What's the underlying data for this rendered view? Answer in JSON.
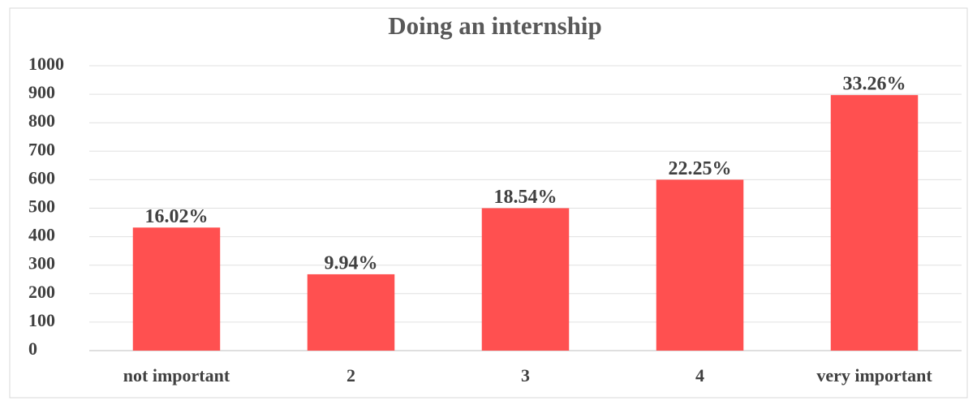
{
  "chart_data": {
    "type": "bar",
    "title": "Doing an internship",
    "categories": [
      "not important",
      "2",
      "3",
      "4",
      "very important"
    ],
    "values": [
      432,
      268,
      500,
      600,
      897
    ],
    "data_labels": [
      "16.02%",
      "9.94%",
      "18.54%",
      "22.25%",
      "33.26%"
    ],
    "color": "#ff5050",
    "ylim": [
      0,
      1000
    ],
    "yticks": [
      0,
      100,
      200,
      300,
      400,
      500,
      600,
      700,
      800,
      900,
      1000
    ],
    "grid": true
  }
}
